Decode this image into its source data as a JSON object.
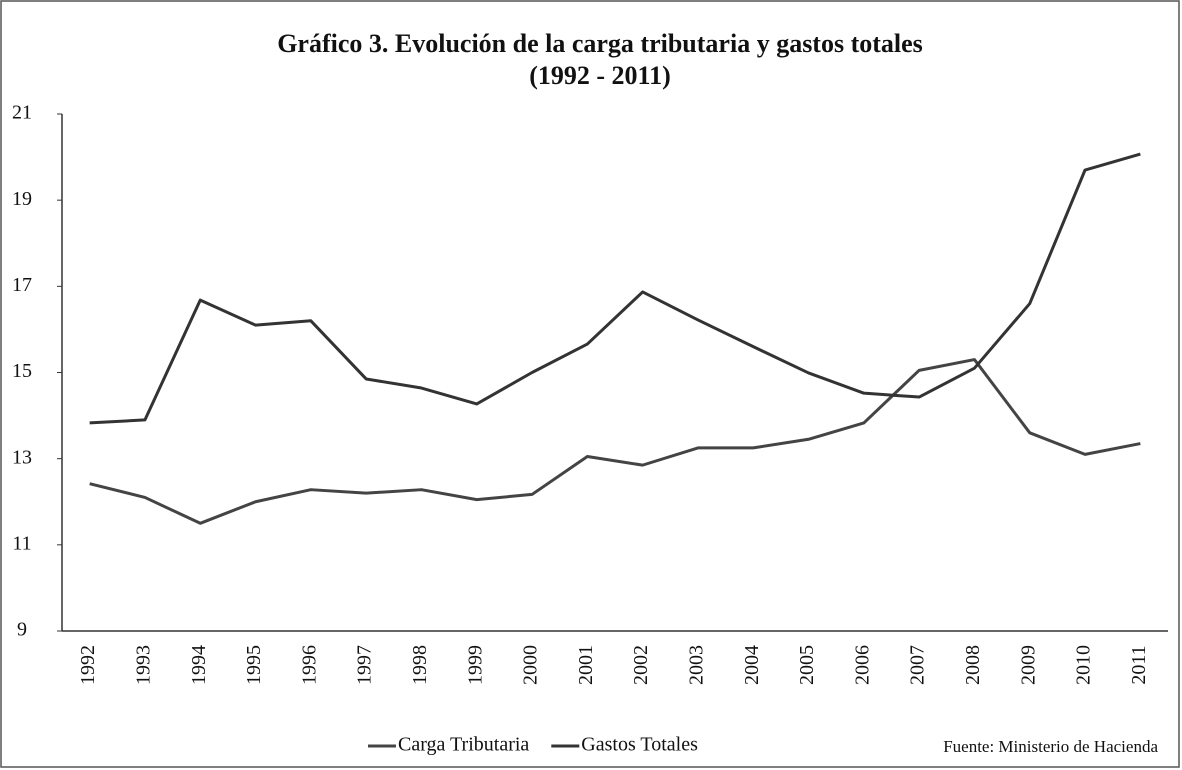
{
  "chart_data": {
    "type": "line",
    "title": "Gráfico 3. Evolución de la carga tributaria y gastos totales",
    "subtitle": "(1992 - 2011)",
    "annotation": "Fuente: Ministerio de Hacienda",
    "categories": [
      "1992",
      "1993",
      "1994",
      "1995",
      "1996",
      "1997",
      "1998",
      "1999",
      "2000",
      "2001",
      "2002",
      "2003",
      "2004",
      "2005",
      "2006",
      "2007",
      "2008",
      "2009",
      "2010",
      "2011"
    ],
    "series": [
      {
        "name": "Carga Tributaria",
        "color": "#444444",
        "values": [
          12.42,
          12.1,
          11.5,
          12.0,
          12.28,
          12.2,
          12.28,
          12.05,
          12.17,
          13.05,
          12.85,
          13.25,
          13.25,
          13.45,
          13.83,
          15.05,
          15.3,
          13.6,
          13.1,
          13.35
        ]
      },
      {
        "name": "Gastos Totales",
        "color": "#333333",
        "values": [
          13.83,
          13.9,
          16.68,
          16.1,
          16.2,
          14.85,
          14.64,
          14.27,
          15.0,
          15.66,
          16.87,
          16.22,
          15.6,
          14.99,
          14.52,
          14.43,
          15.1,
          16.6,
          19.7,
          20.07
        ]
      }
    ],
    "ylim": [
      9,
      21
    ],
    "yticks": [
      9,
      11,
      13,
      15,
      17,
      19,
      21
    ],
    "grid": false
  }
}
